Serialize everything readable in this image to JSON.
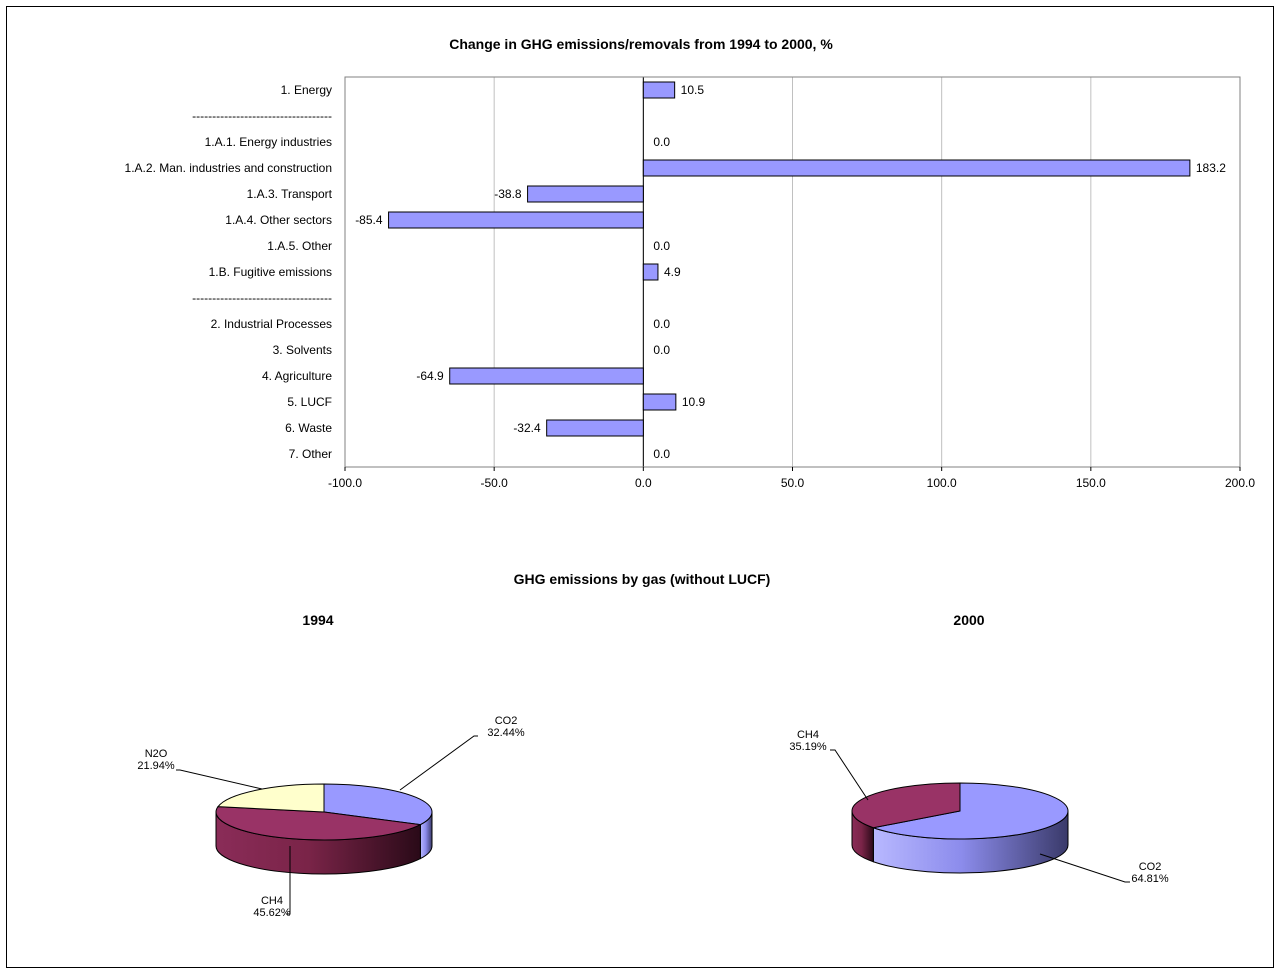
{
  "chart_data": [
    {
      "type": "bar",
      "orientation": "horizontal",
      "title": "Change in GHG emissions/removals from 1994 to 2000, %",
      "xlim": [
        -100,
        200
      ],
      "xticks": [
        "-100.0",
        "-50.0",
        "0.0",
        "50.0",
        "100.0",
        "150.0",
        "200.0"
      ],
      "grid": true,
      "rows": [
        {
          "label": "1. Energy",
          "value": 10.5,
          "value_label": "10.5"
        },
        {
          "label": "-----------------------------------",
          "value": null,
          "value_label": ""
        },
        {
          "label": "1.A.1. Energy industries",
          "value": 0.0,
          "value_label": "0.0"
        },
        {
          "label": "1.A.2. Man. industries and construction",
          "value": 183.2,
          "value_label": "183.2"
        },
        {
          "label": "1.A.3. Transport",
          "value": -38.8,
          "value_label": "-38.8"
        },
        {
          "label": "1.A.4. Other sectors",
          "value": -85.4,
          "value_label": "-85.4"
        },
        {
          "label": "1.A.5. Other",
          "value": 0.0,
          "value_label": "0.0"
        },
        {
          "label": "1.B. Fugitive emissions",
          "value": 4.9,
          "value_label": "4.9"
        },
        {
          "label": "-----------------------------------",
          "value": null,
          "value_label": ""
        },
        {
          "label": "2.  Industrial Processes",
          "value": 0.0,
          "value_label": "0.0"
        },
        {
          "label": "3.  Solvents",
          "value": 0.0,
          "value_label": "0.0"
        },
        {
          "label": "4.  Agriculture",
          "value": -64.9,
          "value_label": "-64.9"
        },
        {
          "label": "5.  LUCF",
          "value": 10.9,
          "value_label": "10.9"
        },
        {
          "label": "6.  Waste",
          "value": -32.4,
          "value_label": "-32.4"
        },
        {
          "label": "7.  Other",
          "value": 0.0,
          "value_label": "0.0"
        }
      ],
      "colors": {
        "bar": "#9999ff",
        "bar_stroke": "#000000",
        "grid": "#c0c0c0"
      }
    },
    {
      "type": "pie",
      "group_title": "GHG emissions by gas (without LUCF)",
      "title": "1994",
      "slices": [
        {
          "name": "CO2",
          "value": 32.44,
          "label": "32.44%",
          "color": "#9999ff"
        },
        {
          "name": "CH4",
          "value": 45.62,
          "label": "45.62%",
          "color": "#993366"
        },
        {
          "name": "N2O",
          "value": 21.94,
          "label": "21.94%",
          "color": "#ffffcc"
        }
      ]
    },
    {
      "type": "pie",
      "title": "2000",
      "slices": [
        {
          "name": "CO2",
          "value": 64.81,
          "label": "64.81%",
          "color": "#9999ff"
        },
        {
          "name": "CH4",
          "value": 35.19,
          "label": "35.19%",
          "color": "#993366"
        }
      ]
    }
  ]
}
